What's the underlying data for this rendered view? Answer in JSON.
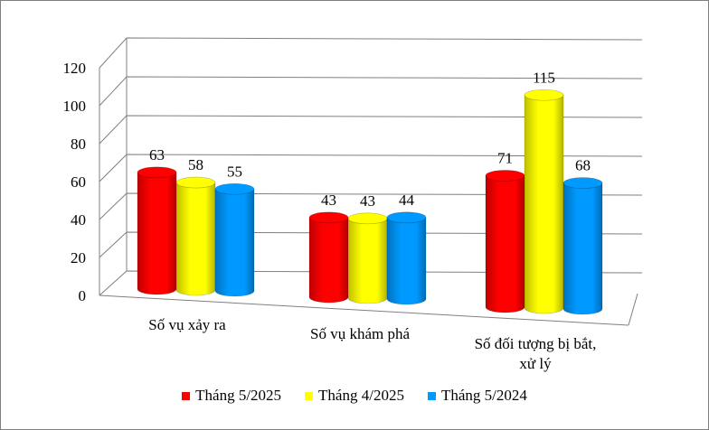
{
  "chart_data": {
    "type": "bar",
    "style": "3d-cylinder",
    "title": "",
    "xlabel": "",
    "ylabel": "",
    "ylim": [
      0,
      120
    ],
    "yticks": [
      0,
      20,
      40,
      60,
      80,
      100,
      120
    ],
    "grid": true,
    "legend_position": "bottom",
    "categories": [
      [
        "Số vụ xảy ra"
      ],
      [
        "Số vụ khám phá"
      ],
      [
        "Số đối tượng bị bắt,",
        "xử lý"
      ]
    ],
    "series": [
      {
        "name": "Tháng 5/2025",
        "color": "#ff0000",
        "values": [
          63,
          43,
          71
        ]
      },
      {
        "name": "Tháng 4/2025",
        "color": "#ffff00",
        "values": [
          58,
          43,
          115
        ]
      },
      {
        "name": "Tháng 5/2024",
        "color": "#0099ff",
        "values": [
          55,
          44,
          68
        ]
      }
    ]
  }
}
